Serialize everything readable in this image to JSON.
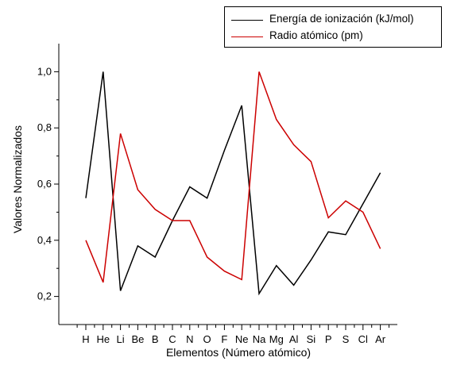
{
  "chart_data": {
    "type": "line",
    "categories": [
      "H",
      "He",
      "Li",
      "Be",
      "B",
      "C",
      "N",
      "O",
      "F",
      "Ne",
      "Na",
      "Mg",
      "Al",
      "Si",
      "P",
      "S",
      "Cl",
      "Ar"
    ],
    "series": [
      {
        "name": "Energía de ionización (kJ/mol)",
        "color": "#000000",
        "values": [
          0.55,
          1.0,
          0.22,
          0.38,
          0.34,
          0.47,
          0.59,
          0.55,
          0.72,
          0.88,
          0.21,
          0.31,
          0.24,
          0.33,
          0.43,
          0.42,
          0.53,
          0.64
        ]
      },
      {
        "name": "Radio atómico (pm)",
        "color": "#cc0000",
        "values": [
          0.4,
          0.25,
          0.78,
          0.58,
          0.51,
          0.47,
          0.47,
          0.34,
          0.29,
          0.26,
          1.0,
          0.83,
          0.74,
          0.68,
          0.48,
          0.54,
          0.5,
          0.37
        ]
      }
    ],
    "xlabel": "Elementos (Número atómico)",
    "ylabel": "Valores Normalizados",
    "ylim": [
      0.1,
      1.1
    ],
    "yticks": [
      0.2,
      0.4,
      0.6,
      0.8,
      1.0
    ],
    "ytick_labels": [
      "0,2",
      "0,4",
      "0,6",
      "0,8",
      "1,0"
    ],
    "legend_position": "top-right",
    "grid": false
  }
}
